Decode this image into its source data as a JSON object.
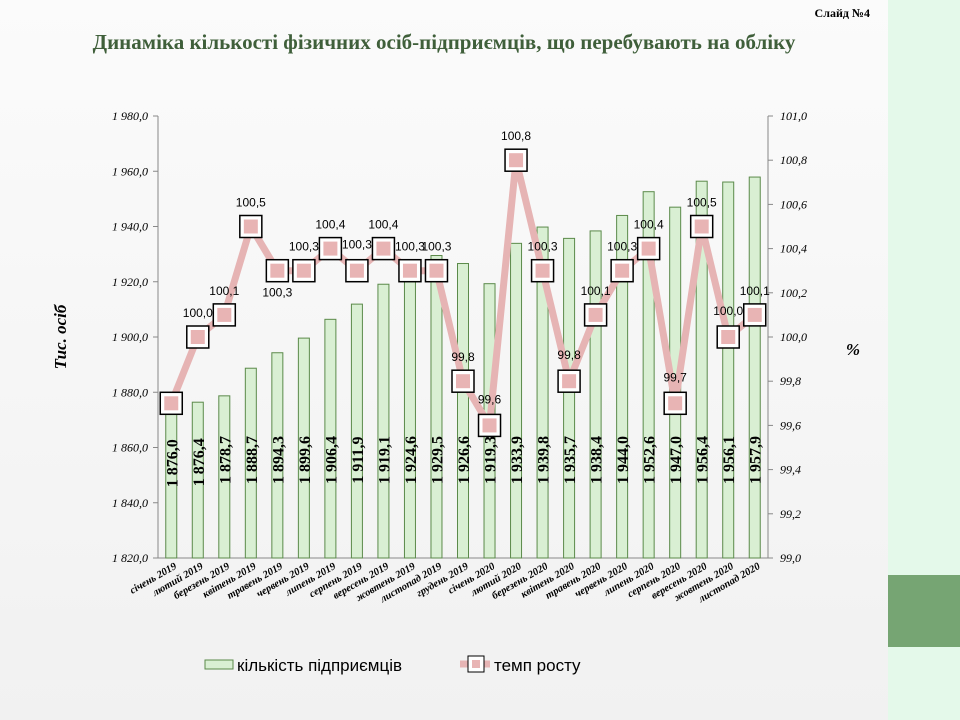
{
  "slide_label": "Слайд №4",
  "title": "Динаміка кількості фізичних осіб-підприємців, що перебувають на обліку",
  "colors": {
    "bar_fill": "#d9efd3",
    "bar_stroke": "#5b8a4a",
    "line": "#e6b4b4",
    "marker": "#e8b4b4",
    "title": "#3f5f3a",
    "side_panel": "#e4f9ea",
    "side_block": "#76a573"
  },
  "chart_data": {
    "type": "bar+line",
    "categories": [
      "січень 2019",
      "лютий 2019",
      "березень 2019",
      "квітень 2019",
      "травень 2019",
      "червень 2019",
      "липень 2019",
      "серпень 2019",
      "вересень 2019",
      "жовтень 2019",
      "листопад 2019",
      "грудень 2019",
      "січень 2020",
      "лютий 2020",
      "березень 2020",
      "квітень 2020",
      "травень 2020",
      "червень 2020",
      "липень 2020",
      "серпень 2020",
      "вересень 2020",
      "жовтень 2020",
      "листопад 2020"
    ],
    "series": [
      {
        "name": "кількість підприємців",
        "type": "bar",
        "axis": "left",
        "values": [
          1876.0,
          1876.4,
          1878.7,
          1888.7,
          1894.3,
          1899.6,
          1906.4,
          1911.9,
          1919.1,
          1924.6,
          1929.5,
          1926.6,
          1919.3,
          1933.9,
          1939.8,
          1935.7,
          1938.4,
          1944.0,
          1952.6,
          1947.0,
          1956.4,
          1956.1,
          1957.9
        ],
        "labels": [
          "1 876,0",
          "1 876,4",
          "1 878,7",
          "1 888,7",
          "1 894,3",
          "1 899,6",
          "1 906,4",
          "1 911,9",
          "1 919,1",
          "1 924,6",
          "1 929,5",
          "1 926,6",
          "1 919,3",
          "1 933,9",
          "1 939,8",
          "1 935,7",
          "1 938,4",
          "1 944,0",
          "1 952,6",
          "1 947,0",
          "1 956,4",
          "1 956,1",
          "1 957,9"
        ]
      },
      {
        "name": "темп росту",
        "type": "line",
        "axis": "right",
        "values": [
          99.7,
          100.0,
          100.1,
          100.5,
          100.3,
          100.3,
          100.4,
          100.3,
          100.4,
          100.3,
          100.3,
          99.8,
          99.6,
          100.8,
          100.3,
          99.8,
          100.1,
          100.3,
          100.4,
          99.7,
          100.5,
          100.0,
          100.1
        ],
        "labels": [
          "",
          "100,0",
          "100,1",
          "100,5",
          "100,3",
          "100,3",
          "100,4",
          "100,3",
          "100,4",
          "100,3",
          "100,3",
          "99,8",
          "99,6",
          "100,8",
          "100,3",
          "99,8",
          "100,1",
          "100,3",
          "100,4",
          "99,7",
          "100,5",
          "100,0",
          "100,1"
        ]
      }
    ],
    "y_left": {
      "label": "Тис. осіб",
      "range": [
        1820,
        1980
      ],
      "ticks": [
        1820,
        1840,
        1860,
        1880,
        1900,
        1920,
        1940,
        1960,
        1980
      ],
      "tick_labels": [
        "1 820,0",
        "1 840,0",
        "1 860,0",
        "1 880,0",
        "1 900,0",
        "1 920,0",
        "1 940,0",
        "1 960,0",
        "1 980,0"
      ]
    },
    "y_right": {
      "label": "%",
      "range": [
        99.0,
        101.0
      ],
      "ticks": [
        99.0,
        99.2,
        99.4,
        99.6,
        99.8,
        100.0,
        100.2,
        100.4,
        100.6,
        100.8,
        101.0
      ],
      "tick_labels": [
        "99,0",
        "99,2",
        "99,4",
        "99,6",
        "99,8",
        "100,0",
        "100,2",
        "100,4",
        "100,6",
        "100,8",
        "101,0"
      ]
    },
    "grid": false,
    "legend_position": "bottom"
  }
}
